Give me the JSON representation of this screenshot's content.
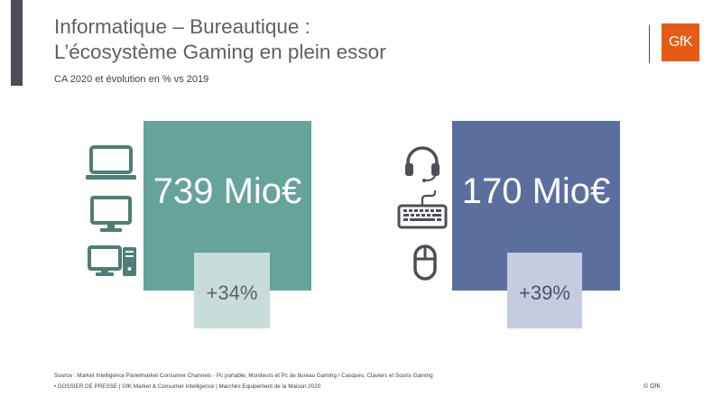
{
  "title": {
    "line1": "Informatique – Bureautique :",
    "line2": "L’écosystème Gaming en plein essor"
  },
  "subtitle": "CA 2020 et évolution en % vs 2019",
  "logo": {
    "text": "GfK",
    "color": "#e55b13"
  },
  "panels": [
    {
      "value": "739 Mio€",
      "growth": "+34%",
      "color": "#66a39b",
      "light_color": "#c8ddda",
      "icons": [
        "laptop-icon",
        "monitor-icon",
        "desktop-pc-icon"
      ]
    },
    {
      "value": "170 Mio€",
      "growth": "+39%",
      "color": "#5b6f9f",
      "light_color": "#c5cce0",
      "icons": [
        "headset-icon",
        "keyboard-icon",
        "mouse-icon"
      ]
    }
  ],
  "footer": {
    "source": "Source : Market Intelligence Panelmarket Consumer Channels - Pc portable, Moniteurs et Pc de bureau Gaming / Casques, Claviers et Souris Gaming",
    "press": "•   DOSSIER DE PRESSE | GfK Market & Consumer Intelligence | Marchés Equipement de la Maison 2020",
    "copyright": "© GfK"
  }
}
